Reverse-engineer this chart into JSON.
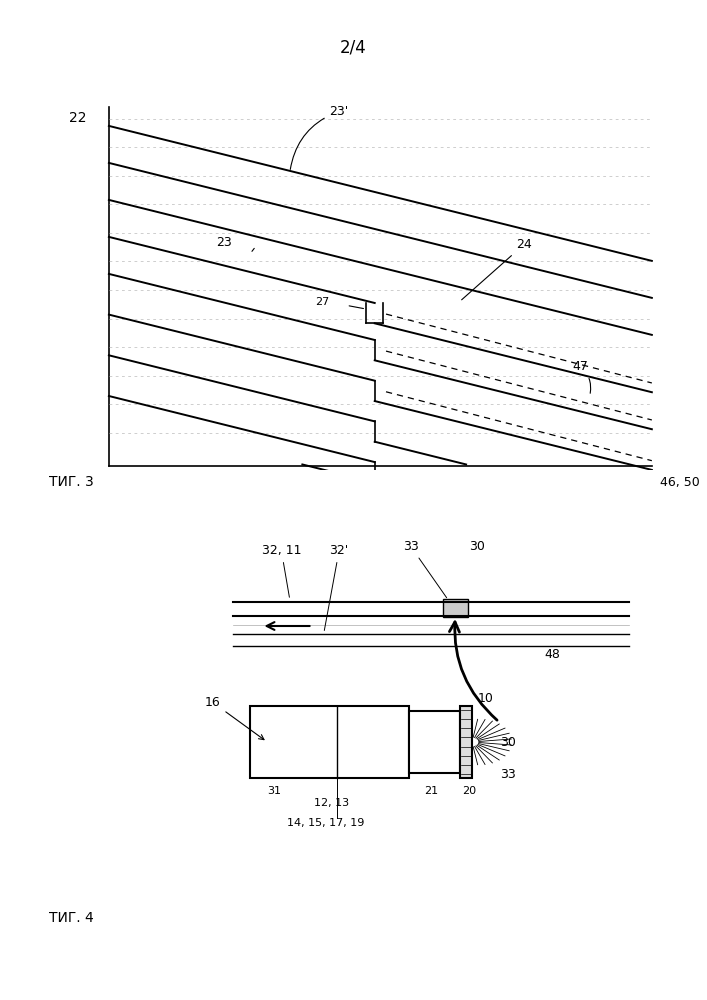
{
  "page_label": "2/4",
  "fig3_label": "ΤИГ. 3",
  "fig4_label": "ΤИГ. 4",
  "label_22": "22",
  "label_23": "23",
  "label_23p": "23'",
  "label_24": "24",
  "label_27": "27",
  "label_47": "47",
  "label_46_50": "46, 50",
  "label_32_11": "32, 11",
  "label_32p": "32'",
  "label_33": "33",
  "label_30": "30",
  "label_48": "48",
  "label_16": "16",
  "label_31": "31",
  "label_12_13": "12, 13",
  "label_14_etc": "14, 15, 17, 19",
  "label_21": "21",
  "label_20": "20",
  "label_10": "10",
  "label_30b": "30",
  "label_33b": "33",
  "bg_color": "#ffffff",
  "line_color": "#000000"
}
